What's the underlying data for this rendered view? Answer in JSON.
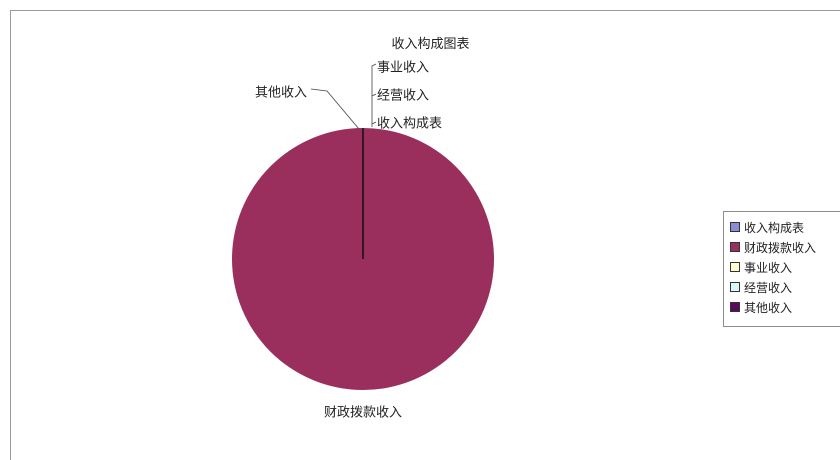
{
  "chart_data": {
    "type": "pie",
    "title": "收入构成图表",
    "categories": [
      "收入构成表",
      "财政拨款收入",
      "事业收入",
      "经营收入",
      "其他收入"
    ],
    "values": [
      0,
      100,
      0,
      0,
      0
    ],
    "colors": [
      "#8c8cd6",
      "#9a2f5e",
      "#fffbd0",
      "#d8f8f8",
      "#5a0a5e"
    ],
    "legend_position": "right",
    "slice_labels": {
      "收入构成表": "收入构成表",
      "财政拨款收入": "财政拨款收入",
      "事业收入": "事业收入",
      "经营收入": "经营收入",
      "其他收入": "其他收入"
    }
  }
}
